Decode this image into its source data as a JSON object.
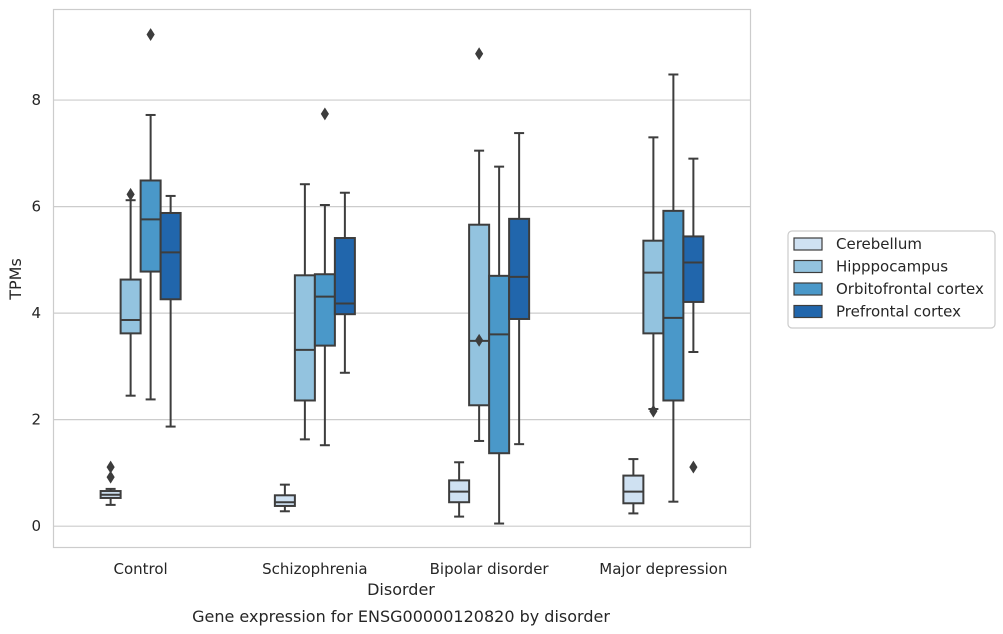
{
  "chart_data": {
    "type": "boxplot",
    "caption": "Gene expression for ENSG00000120820 by disorder",
    "xlabel": "Disorder",
    "ylabel": "TPMs",
    "ylim": [
      -0.4,
      9.7
    ],
    "yticks": [
      0,
      2,
      4,
      6,
      8
    ],
    "grid": "horizontal",
    "legend_position": "right",
    "categories": [
      "Control",
      "Schizophrenia",
      "Bipolar disorder",
      "Major depression"
    ],
    "series": [
      {
        "name": "Cerebellum",
        "color": "#cfe1f2",
        "boxes": [
          {
            "whislo": 0.4,
            "q1": 0.53,
            "med": 0.59,
            "q3": 0.66,
            "whishi": 0.7,
            "fliers": [
              1.11,
              0.92
            ]
          },
          {
            "whislo": 0.28,
            "q1": 0.38,
            "med": 0.45,
            "q3": 0.58,
            "whishi": 0.78,
            "fliers": []
          },
          {
            "whislo": 0.18,
            "q1": 0.45,
            "med": 0.65,
            "q3": 0.86,
            "whishi": 1.2,
            "fliers": []
          },
          {
            "whislo": 0.24,
            "q1": 0.43,
            "med": 0.65,
            "q3": 0.95,
            "whishi": 1.26,
            "fliers": []
          }
        ]
      },
      {
        "name": "Hipppocampus",
        "color": "#93c3df",
        "boxes": [
          {
            "whislo": 2.45,
            "q1": 3.62,
            "med": 3.87,
            "q3": 4.63,
            "whishi": 6.12,
            "fliers": [
              6.23
            ]
          },
          {
            "whislo": 1.63,
            "q1": 2.36,
            "med": 3.31,
            "q3": 4.71,
            "whishi": 6.42,
            "fliers": []
          },
          {
            "whislo": 1.6,
            "q1": 2.27,
            "med": 3.48,
            "q3": 5.66,
            "whishi": 7.05,
            "fliers": [
              8.87,
              3.49
            ]
          },
          {
            "whislo": 2.2,
            "q1": 3.62,
            "med": 4.76,
            "q3": 5.36,
            "whishi": 7.3,
            "fliers": [
              2.16
            ]
          }
        ]
      },
      {
        "name": "Orbitofrontal cortex",
        "color": "#4a98c9",
        "boxes": [
          {
            "whislo": 2.38,
            "q1": 4.78,
            "med": 5.76,
            "q3": 6.49,
            "whishi": 7.72,
            "fliers": [
              9.23
            ]
          },
          {
            "whislo": 1.52,
            "q1": 3.39,
            "med": 4.31,
            "q3": 4.73,
            "whishi": 6.03,
            "fliers": [
              7.74
            ]
          },
          {
            "whislo": 0.05,
            "q1": 1.37,
            "med": 3.6,
            "q3": 4.7,
            "whishi": 6.75,
            "fliers": []
          },
          {
            "whislo": 0.46,
            "q1": 2.36,
            "med": 3.91,
            "q3": 5.92,
            "whishi": 8.48,
            "fliers": []
          }
        ]
      },
      {
        "name": "Prefrontal cortex",
        "color": "#2166ac",
        "boxes": [
          {
            "whislo": 1.87,
            "q1": 4.26,
            "med": 5.14,
            "q3": 5.88,
            "whishi": 6.2,
            "fliers": []
          },
          {
            "whislo": 2.88,
            "q1": 3.98,
            "med": 4.18,
            "q3": 5.41,
            "whishi": 6.26,
            "fliers": []
          },
          {
            "whislo": 1.54,
            "q1": 3.89,
            "med": 4.68,
            "q3": 5.77,
            "whishi": 7.38,
            "fliers": []
          },
          {
            "whislo": 3.27,
            "q1": 4.21,
            "med": 4.95,
            "q3": 5.44,
            "whishi": 6.9,
            "fliers": [
              1.11
            ]
          }
        ]
      }
    ]
  }
}
